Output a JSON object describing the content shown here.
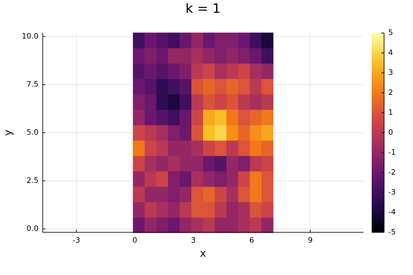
{
  "chart_data": {
    "type": "heatmap",
    "title": "k = 1",
    "x_label": "x",
    "y_label": "y",
    "xlim": [
      -4.73,
      11.73
    ],
    "xticks": [
      -3,
      0,
      3,
      6,
      9
    ],
    "ylim": [
      -0.18,
      10.18
    ],
    "yticks": [
      {
        "value": 0,
        "label": "0.0"
      },
      2.5,
      {
        "value": 5,
        "label": "5.0"
      },
      7.5,
      {
        "value": 10,
        "label": "10.0"
      }
    ],
    "grid": true,
    "colormap": "inferno",
    "clim": [
      -5,
      5
    ],
    "cticks": [
      -5,
      -4,
      -3,
      -2,
      -1,
      0,
      1,
      2,
      3,
      4,
      5
    ],
    "x_edges": [
      -0.1,
      0.5,
      1.1,
      1.7,
      2.3,
      2.9,
      3.5,
      4.1,
      4.7,
      5.3,
      5.9,
      6.5,
      7.1
    ],
    "y_edges": [
      -0.2,
      0.6,
      1.4,
      2.2,
      3.0,
      3.8,
      4.6,
      5.4,
      6.2,
      7.0,
      7.8,
      8.6,
      9.4,
      10.2
    ],
    "z": [
      [
        -2,
        -1,
        -1.5,
        -2,
        -1,
        -0.5,
        0,
        -1,
        -1,
        -0.5,
        0,
        -1
      ],
      [
        -1,
        0,
        -0.5,
        -1,
        0,
        1,
        1,
        0,
        -1,
        -0.5,
        1,
        0.5
      ],
      [
        0,
        -1,
        -1,
        -1.5,
        -1,
        1,
        1.5,
        0.5,
        -0.5,
        1,
        2,
        1
      ],
      [
        -1,
        0,
        0.5,
        -1.5,
        -2,
        -0.5,
        -1,
        -1.5,
        -1,
        0.5,
        2,
        1
      ],
      [
        0.5,
        -0.5,
        -1,
        -0.5,
        -1,
        -1,
        -2,
        -2.5,
        -1,
        -1.5,
        0,
        0.5
      ],
      [
        2,
        0.5,
        0,
        -1,
        -1,
        -0.5,
        0.5,
        1,
        0,
        1,
        2,
        1.5
      ],
      [
        0.5,
        0,
        -0.5,
        -1.5,
        -2,
        1,
        3.5,
        4,
        2.5,
        1.5,
        2.5,
        3
      ],
      [
        -1,
        -2,
        -2.5,
        -3,
        -2,
        0.5,
        3,
        3.5,
        2,
        1,
        1.5,
        2
      ],
      [
        -1.5,
        -2,
        -3.5,
        -4,
        -3,
        0,
        1,
        0.5,
        1,
        0,
        -0.5,
        0
      ],
      [
        -2,
        -2.5,
        -3.5,
        -3,
        -2.5,
        1,
        1.5,
        1,
        1.5,
        1,
        0,
        1
      ],
      [
        -2.5,
        -2,
        -2.5,
        -2,
        -1.5,
        0,
        0.5,
        -0.5,
        0,
        0.5,
        -0.5,
        -1
      ],
      [
        -2,
        -1.5,
        -2,
        -1,
        -1,
        -0.5,
        -1,
        -1.5,
        -1,
        -1.5,
        -2,
        -3
      ],
      [
        -3,
        -2,
        -2.5,
        -3,
        -2,
        -1,
        -2,
        -1.5,
        -1.5,
        -2,
        -3,
        -4
      ]
    ]
  }
}
